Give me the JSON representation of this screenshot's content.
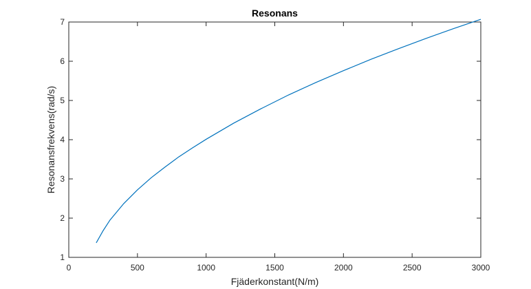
{
  "chart_data": {
    "type": "line",
    "title": "Resonans",
    "xlabel": "Fjäderkonstant(N/m)",
    "ylabel": "Resonansfrekvens(rad/s)",
    "xlim": [
      0,
      3000
    ],
    "ylim": [
      1,
      7
    ],
    "xticks": [
      0,
      500,
      1000,
      1500,
      2000,
      2500,
      3000
    ],
    "yticks": [
      1,
      2,
      3,
      4,
      5,
      6,
      7
    ],
    "grid": false,
    "legend": "none",
    "series": [
      {
        "color": "#0072bd",
        "x": [
          200,
          250,
          300,
          400,
          500,
          600,
          700,
          800,
          900,
          1000,
          1200,
          1400,
          1600,
          1800,
          2000,
          2200,
          2400,
          2600,
          2800,
          3000
        ],
        "y": [
          1.37,
          1.68,
          1.95,
          2.37,
          2.72,
          3.03,
          3.3,
          3.56,
          3.79,
          4.01,
          4.42,
          4.79,
          5.14,
          5.46,
          5.76,
          6.05,
          6.32,
          6.58,
          6.83,
          7.07
        ]
      }
    ]
  }
}
